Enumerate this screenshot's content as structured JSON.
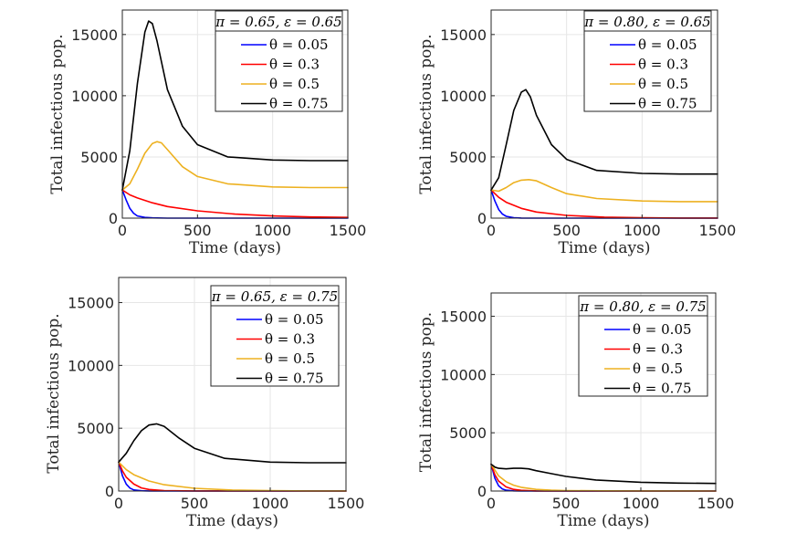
{
  "colors": {
    "theta_0_05": "#0000ff",
    "theta_0_3": "#ff0000",
    "theta_0_5": "#edb120",
    "theta_0_75": "#000000"
  },
  "chart_data": [
    {
      "type": "line",
      "title": "",
      "legend_title": "π = 0.65, ε = 0.65",
      "xlabel": "Time (days)",
      "ylabel": "Total infectious pop.",
      "xlim": [
        0,
        1500
      ],
      "ylim": [
        0,
        17000
      ],
      "xticks": [
        0,
        500,
        1000,
        1500
      ],
      "yticks": [
        0,
        5000,
        10000,
        15000
      ],
      "series": [
        {
          "name": "θ = 0.05",
          "color_key": "theta_0_05",
          "x": [
            0,
            25,
            50,
            75,
            100,
            150,
            200,
            300,
            500,
            1500
          ],
          "y": [
            2300,
            1500,
            800,
            400,
            180,
            60,
            20,
            0,
            0,
            0
          ]
        },
        {
          "name": "θ = 0.3",
          "color_key": "theta_0_3",
          "x": [
            0,
            50,
            100,
            200,
            300,
            500,
            750,
            1000,
            1250,
            1500
          ],
          "y": [
            2300,
            1900,
            1650,
            1250,
            950,
            600,
            330,
            180,
            100,
            60
          ]
        },
        {
          "name": "θ = 0.5",
          "color_key": "theta_0_5",
          "x": [
            0,
            50,
            100,
            150,
            200,
            230,
            260,
            300,
            400,
            500,
            700,
            1000,
            1250,
            1500
          ],
          "y": [
            2300,
            2800,
            4000,
            5300,
            6100,
            6250,
            6150,
            5600,
            4200,
            3400,
            2800,
            2550,
            2500,
            2500
          ]
        },
        {
          "name": "θ = 0.75",
          "color_key": "theta_0_75",
          "x": [
            0,
            50,
            100,
            150,
            175,
            200,
            230,
            300,
            400,
            500,
            700,
            1000,
            1250,
            1500
          ],
          "y": [
            2300,
            5500,
            11000,
            15200,
            16100,
            15900,
            14500,
            10500,
            7500,
            6000,
            5000,
            4750,
            4700,
            4700
          ]
        }
      ]
    },
    {
      "type": "line",
      "title": "",
      "legend_title": "π = 0.80, ε = 0.65",
      "xlabel": "Time (days)",
      "ylabel": "Total infectious pop.",
      "xlim": [
        0,
        1500
      ],
      "ylim": [
        0,
        17000
      ],
      "xticks": [
        0,
        500,
        1000,
        1500
      ],
      "yticks": [
        0,
        5000,
        10000,
        15000
      ],
      "series": [
        {
          "name": "θ = 0.05",
          "color_key": "theta_0_05",
          "x": [
            0,
            25,
            50,
            75,
            100,
            150,
            200,
            300,
            500,
            1500
          ],
          "y": [
            2300,
            1400,
            700,
            330,
            150,
            40,
            10,
            0,
            0,
            0
          ]
        },
        {
          "name": "θ = 0.3",
          "color_key": "theta_0_3",
          "x": [
            0,
            50,
            100,
            200,
            300,
            500,
            750,
            1000,
            1250,
            1500
          ],
          "y": [
            2300,
            1700,
            1300,
            800,
            500,
            220,
            80,
            30,
            10,
            5
          ]
        },
        {
          "name": "θ = 0.5",
          "color_key": "theta_0_5",
          "x": [
            0,
            50,
            100,
            150,
            200,
            250,
            300,
            400,
            500,
            700,
            1000,
            1250,
            1500
          ],
          "y": [
            2300,
            2200,
            2500,
            2900,
            3100,
            3150,
            3050,
            2500,
            2000,
            1600,
            1400,
            1350,
            1350
          ]
        },
        {
          "name": "θ = 0.75",
          "color_key": "theta_0_75",
          "x": [
            0,
            50,
            100,
            150,
            200,
            230,
            260,
            300,
            400,
            500,
            700,
            1000,
            1250,
            1500
          ],
          "y": [
            2300,
            3300,
            6000,
            8800,
            10300,
            10500,
            9900,
            8400,
            6000,
            4800,
            3900,
            3650,
            3600,
            3600
          ]
        }
      ]
    },
    {
      "type": "line",
      "title": "",
      "legend_title": "π = 0.65, ε = 0.75",
      "xlabel": "Time (days)",
      "ylabel": "Total infectious pop.",
      "xlim": [
        0,
        1500
      ],
      "ylim": [
        0,
        17000
      ],
      "xticks": [
        0,
        500,
        1000,
        1500
      ],
      "yticks": [
        0,
        5000,
        10000,
        15000
      ],
      "series": [
        {
          "name": "θ = 0.05",
          "color_key": "theta_0_05",
          "x": [
            0,
            25,
            50,
            75,
            100,
            150,
            200,
            300,
            500,
            1500
          ],
          "y": [
            2300,
            1200,
            550,
            230,
            90,
            20,
            5,
            0,
            0,
            0
          ]
        },
        {
          "name": "θ = 0.3",
          "color_key": "theta_0_3",
          "x": [
            0,
            25,
            50,
            100,
            150,
            200,
            300,
            500,
            1000,
            1500
          ],
          "y": [
            2300,
            1600,
            1100,
            550,
            250,
            120,
            30,
            5,
            0,
            0
          ]
        },
        {
          "name": "θ = 0.5",
          "color_key": "theta_0_5",
          "x": [
            0,
            50,
            100,
            200,
            300,
            500,
            750,
            1000,
            1250,
            1500
          ],
          "y": [
            2300,
            1700,
            1300,
            800,
            500,
            220,
            80,
            30,
            10,
            5
          ]
        },
        {
          "name": "θ = 0.75",
          "color_key": "theta_0_75",
          "x": [
            0,
            50,
            100,
            150,
            200,
            250,
            300,
            400,
            500,
            700,
            1000,
            1250,
            1500
          ],
          "y": [
            2300,
            3000,
            4000,
            4800,
            5250,
            5350,
            5150,
            4200,
            3400,
            2600,
            2300,
            2250,
            2250
          ]
        }
      ]
    },
    {
      "type": "line",
      "title": "",
      "legend_title": "π = 0.80, ε = 0.75",
      "xlabel": "Time (days)",
      "ylabel": "Total infectious pop.",
      "xlim": [
        0,
        1500
      ],
      "ylim": [
        0,
        17000
      ],
      "xticks": [
        0,
        500,
        1000,
        1500
      ],
      "yticks": [
        0,
        5000,
        10000,
        15000
      ],
      "series": [
        {
          "name": "θ = 0.05",
          "color_key": "theta_0_05",
          "x": [
            0,
            25,
            50,
            75,
            100,
            150,
            200,
            300,
            500,
            1500
          ],
          "y": [
            2300,
            1100,
            450,
            180,
            70,
            15,
            3,
            0,
            0,
            0
          ]
        },
        {
          "name": "θ = 0.3",
          "color_key": "theta_0_3",
          "x": [
            0,
            25,
            50,
            100,
            150,
            200,
            300,
            500,
            1000,
            1500
          ],
          "y": [
            2300,
            1400,
            850,
            350,
            140,
            60,
            10,
            2,
            0,
            0
          ]
        },
        {
          "name": "θ = 0.5",
          "color_key": "theta_0_5",
          "x": [
            0,
            50,
            100,
            150,
            200,
            300,
            400,
            500,
            750,
            1000,
            1500
          ],
          "y": [
            2300,
            1300,
            800,
            500,
            320,
            140,
            70,
            40,
            15,
            5,
            2
          ]
        },
        {
          "name": "θ = 0.75",
          "color_key": "theta_0_75",
          "x": [
            0,
            25,
            50,
            100,
            150,
            200,
            250,
            300,
            400,
            500,
            700,
            1000,
            1250,
            1500
          ],
          "y": [
            2300,
            2050,
            1950,
            1900,
            1950,
            1950,
            1900,
            1750,
            1500,
            1250,
            950,
            750,
            680,
            650
          ]
        }
      ]
    }
  ]
}
